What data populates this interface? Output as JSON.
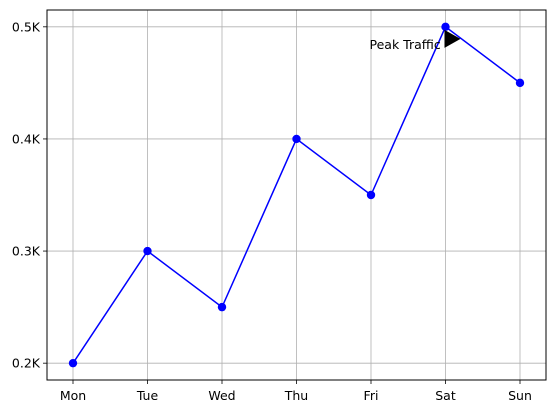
{
  "chart_data": {
    "type": "line",
    "categories": [
      "Mon",
      "Tue",
      "Wed",
      "Thu",
      "Fri",
      "Sat",
      "Sun"
    ],
    "series": [
      {
        "values": [
          200,
          300,
          250,
          400,
          350,
          500,
          450
        ],
        "color": "#0000ff",
        "marker": "circle"
      }
    ],
    "ylim": [
      185,
      515
    ],
    "yticks": [
      200,
      300,
      400,
      500
    ],
    "ytick_labels": [
      "0.2K",
      "0.3K",
      "0.4K",
      "0.5K"
    ],
    "grid": true,
    "title": "",
    "xlabel": "",
    "ylabel": "",
    "annotation": {
      "text": "Peak Traffic",
      "x": "Sat",
      "y": 500,
      "arrow_color": "#000000"
    }
  }
}
